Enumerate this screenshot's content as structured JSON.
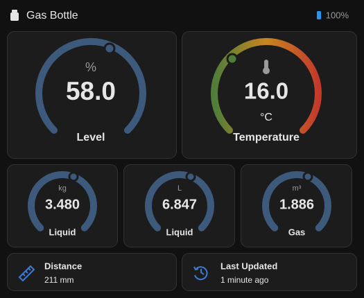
{
  "header": {
    "title": "Gas Bottle",
    "battery": "100%"
  },
  "gauges": [
    {
      "unit": "%",
      "value": "58.0",
      "label": "Level"
    },
    {
      "unit": "°C",
      "value": "16.0",
      "label": "Temperature"
    }
  ],
  "small_gauges": [
    {
      "unit": "kg",
      "value": "3.480",
      "label": "Liquid"
    },
    {
      "unit": "L",
      "value": "6.847",
      "label": "Liquid"
    },
    {
      "unit": "m³",
      "value": "1.886",
      "label": "Gas"
    }
  ],
  "tiles": [
    {
      "title": "Distance",
      "value": "211 mm"
    },
    {
      "title": "Last Updated",
      "value": "1 minute ago"
    }
  ]
}
